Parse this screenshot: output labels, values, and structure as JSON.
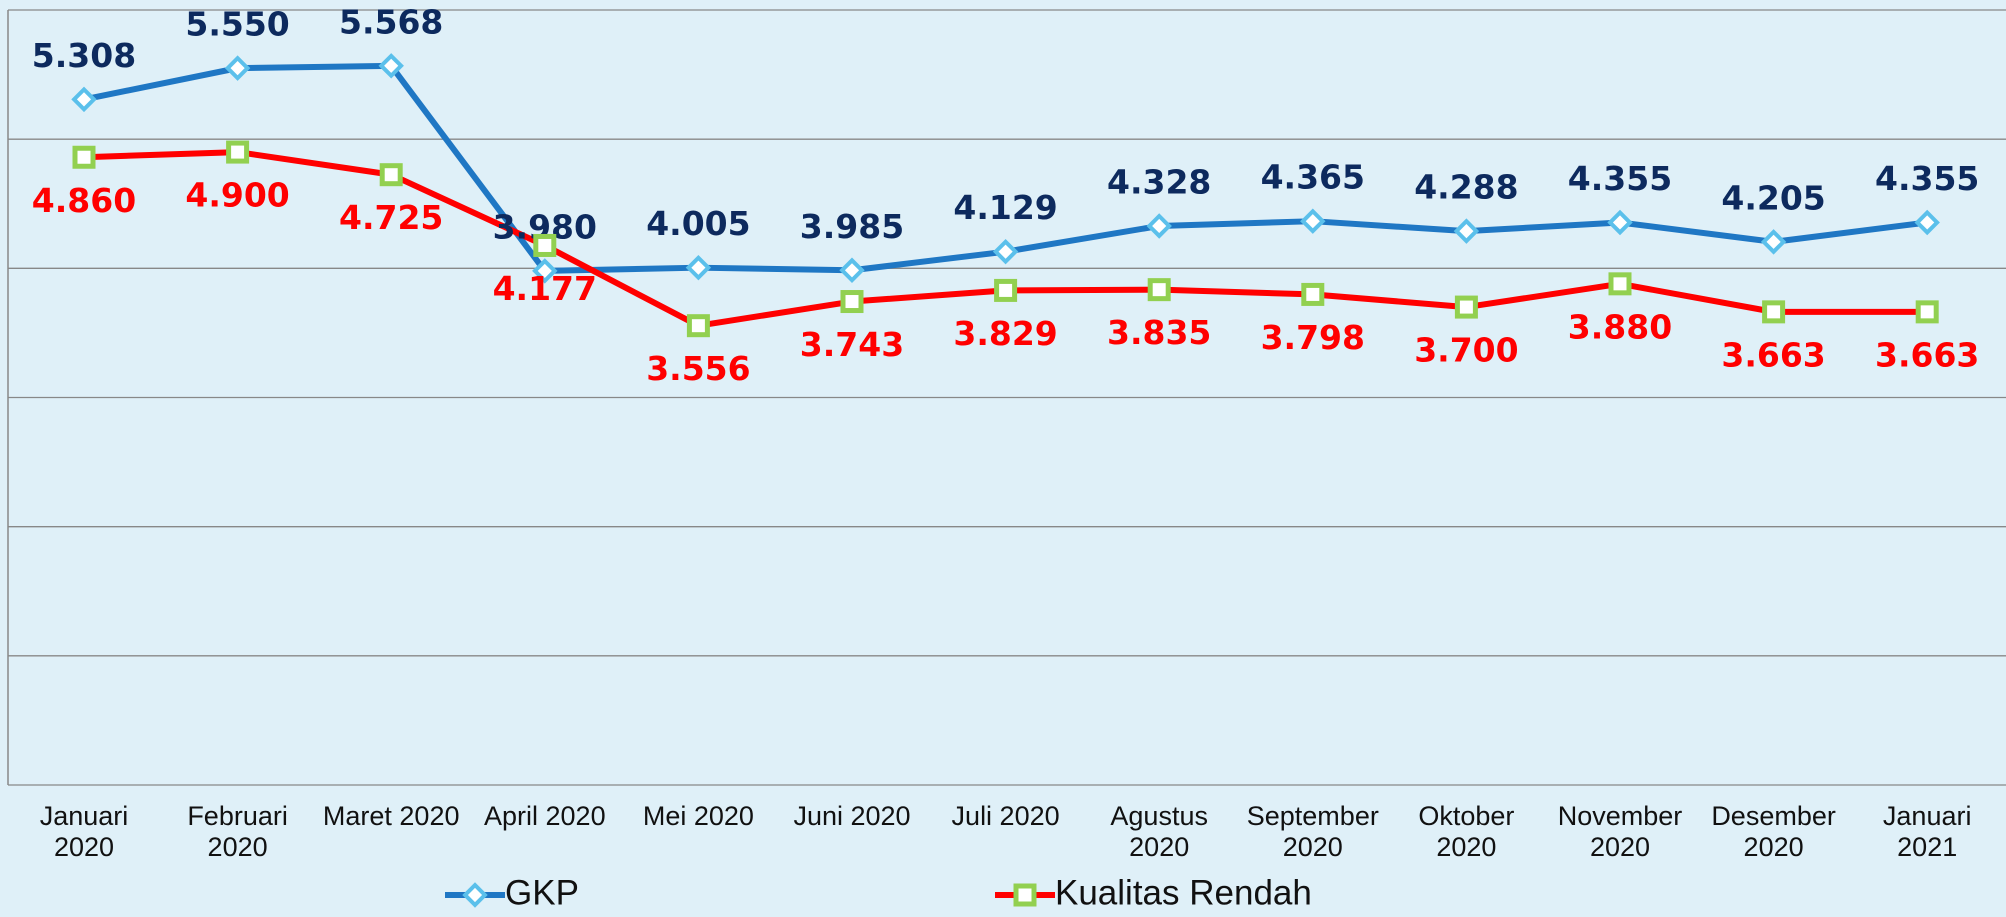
{
  "chart_data": {
    "type": "line",
    "categories": [
      "Januari 2020",
      "Februari 2020",
      "Maret 2020",
      "April 2020",
      "Mei 2020",
      "Juni 2020",
      "Juli 2020",
      "Agustus 2020",
      "September 2020",
      "Oktober 2020",
      "November 2020",
      "Desember 2020",
      "Januari 2021"
    ],
    "series": [
      {
        "name": "GKP",
        "color": "#1f77c4",
        "marker_color": "#5bc0eb",
        "label_color": "#0d2a5e",
        "values": [
          5308,
          5550,
          5568,
          3980,
          4005,
          3985,
          4129,
          4328,
          4365,
          4288,
          4355,
          4205,
          4355
        ],
        "value_labels": [
          "5.308",
          "5.550",
          "5.568",
          "3.980",
          "4.005",
          "3.985",
          "4.129",
          "4.328",
          "4.365",
          "4.288",
          "4.355",
          "4.205",
          "4.355"
        ]
      },
      {
        "name": "Kualitas Rendah",
        "color": "#ff0000",
        "marker_color": "#92d050",
        "label_color": "#ff0000",
        "values": [
          4860,
          4900,
          4725,
          4177,
          3556,
          3743,
          3829,
          3835,
          3798,
          3700,
          3880,
          3663,
          3663
        ],
        "value_labels": [
          "4.860",
          "4.900",
          "4.725",
          "4.177",
          "3.556",
          "3.743",
          "3.829",
          "3.835",
          "3.798",
          "3.700",
          "3.880",
          "3.663",
          "3.663"
        ]
      }
    ],
    "ylim": [
      0,
      6000
    ],
    "yticks": [
      0,
      1000,
      2000,
      3000,
      4000,
      5000,
      6000
    ],
    "grid": true
  }
}
